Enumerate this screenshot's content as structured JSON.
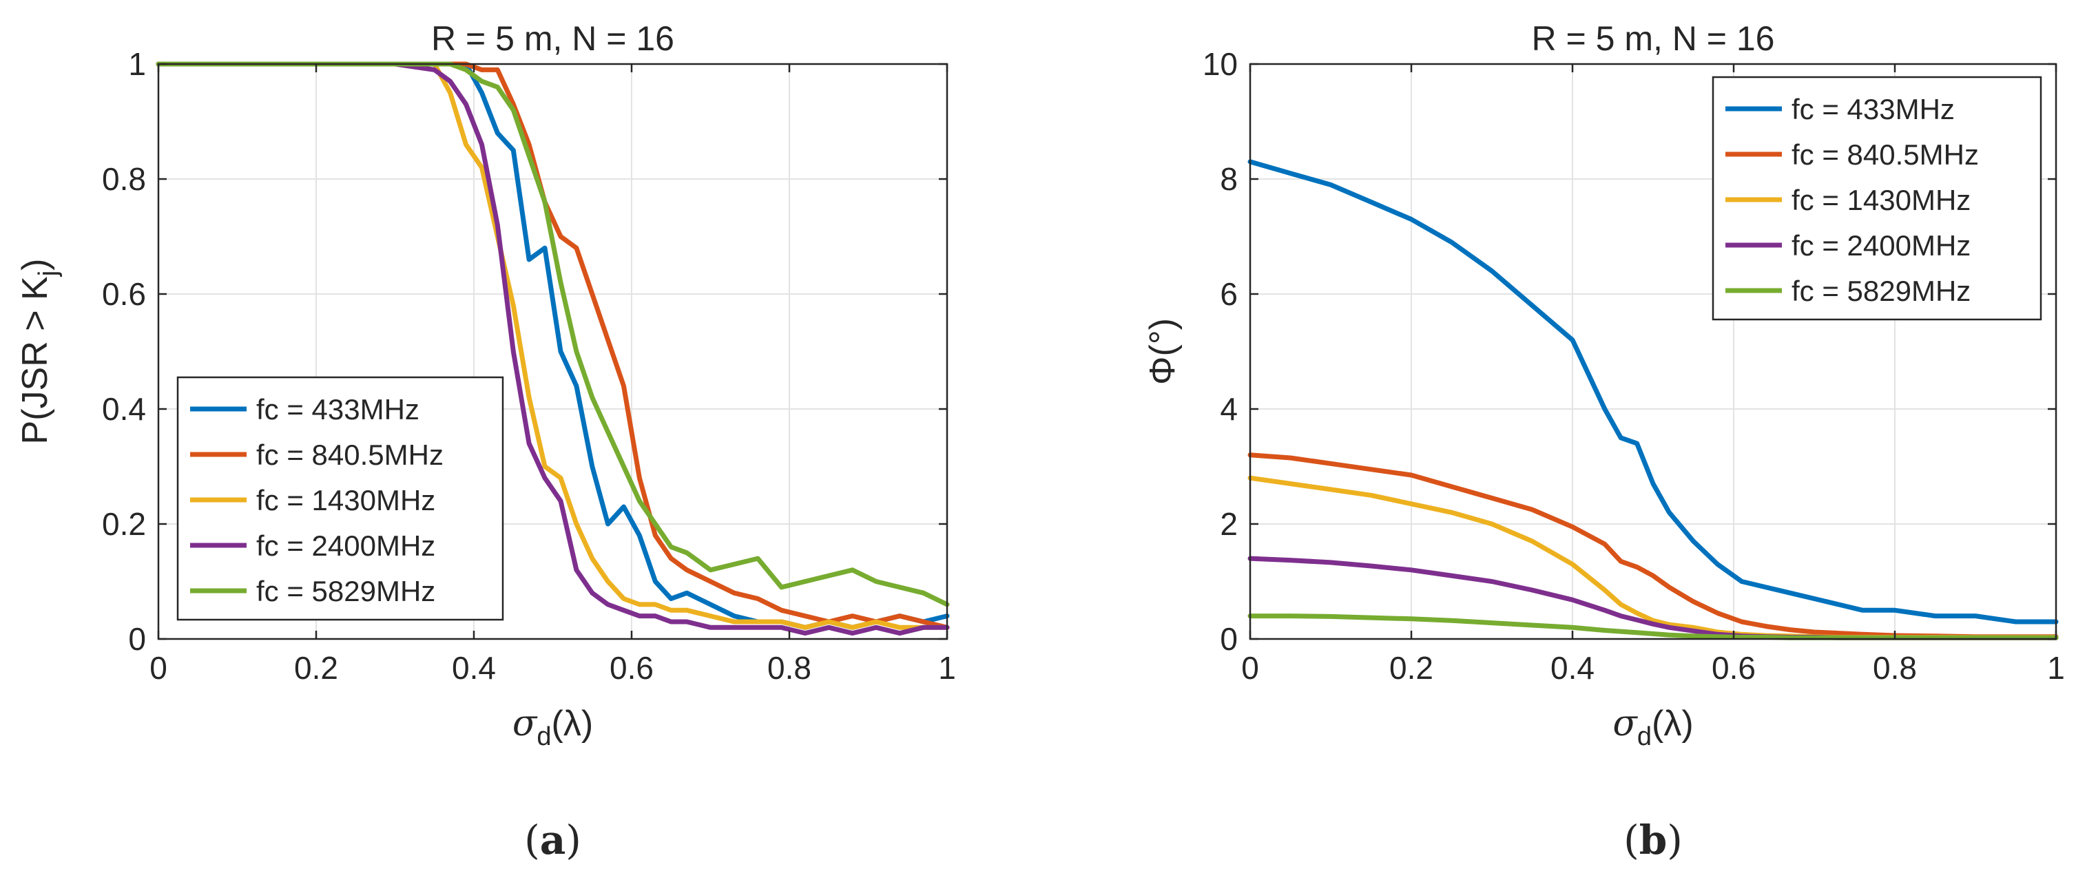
{
  "chart_data": [
    {
      "type": "line",
      "panel_label": {
        "open": "(",
        "letter": "a",
        "close": ")"
      },
      "title": "R = 5 m, N = 16",
      "xlabel": {
        "main": "σ",
        "sub": "d",
        "rest": "(λ)"
      },
      "ylabel": {
        "main": "P(JSR > K",
        "sub": "j",
        "rest": ")"
      },
      "xlim": [
        0,
        1
      ],
      "ylim": [
        0,
        1
      ],
      "xticks": [
        0,
        0.2,
        0.4,
        0.6,
        0.8,
        1
      ],
      "xtick_labels": [
        "0",
        "0.2",
        "0.4",
        "0.6",
        "0.8",
        "1"
      ],
      "yticks": [
        0,
        0.2,
        0.4,
        0.6,
        0.8,
        1
      ],
      "ytick_labels": [
        "0",
        "0.2",
        "0.4",
        "0.6",
        "0.8",
        "1"
      ],
      "grid": true,
      "legend_position": "lower-left",
      "x": [
        0,
        0.05,
        0.1,
        0.15,
        0.2,
        0.25,
        0.3,
        0.35,
        0.37,
        0.39,
        0.41,
        0.43,
        0.45,
        0.47,
        0.49,
        0.51,
        0.53,
        0.55,
        0.57,
        0.59,
        0.61,
        0.63,
        0.65,
        0.67,
        0.7,
        0.73,
        0.76,
        0.79,
        0.82,
        0.85,
        0.88,
        0.91,
        0.94,
        0.97,
        1.0
      ],
      "series": [
        {
          "name": "fc = 433MHz",
          "color": "#0072BD",
          "values": [
            1,
            1,
            1,
            1,
            1,
            1,
            1,
            1,
            1,
            1,
            0.95,
            0.88,
            0.85,
            0.66,
            0.68,
            0.5,
            0.44,
            0.3,
            0.2,
            0.23,
            0.18,
            0.1,
            0.07,
            0.08,
            0.06,
            0.04,
            0.03,
            0.03,
            0.02,
            0.03,
            0.02,
            0.03,
            0.04,
            0.03,
            0.04
          ]
        },
        {
          "name": "fc = 840.5MHz",
          "color": "#D95319",
          "values": [
            1,
            1,
            1,
            1,
            1,
            1,
            1,
            1,
            1,
            1,
            0.99,
            0.99,
            0.93,
            0.86,
            0.76,
            0.7,
            0.68,
            0.6,
            0.52,
            0.44,
            0.28,
            0.18,
            0.14,
            0.12,
            0.1,
            0.08,
            0.07,
            0.05,
            0.04,
            0.03,
            0.04,
            0.03,
            0.04,
            0.03,
            0.02
          ]
        },
        {
          "name": "fc = 1430MHz",
          "color": "#EDB120",
          "values": [
            1,
            1,
            1,
            1,
            1,
            1,
            1,
            1,
            0.95,
            0.86,
            0.82,
            0.7,
            0.58,
            0.42,
            0.3,
            0.28,
            0.2,
            0.14,
            0.1,
            0.07,
            0.06,
            0.06,
            0.05,
            0.05,
            0.04,
            0.03,
            0.03,
            0.03,
            0.02,
            0.03,
            0.02,
            0.03,
            0.02,
            0.02,
            0.02
          ]
        },
        {
          "name": "fc = 2400MHz",
          "color": "#7E2F8E",
          "values": [
            1,
            1,
            1,
            1,
            1,
            1,
            1,
            0.99,
            0.97,
            0.93,
            0.86,
            0.72,
            0.5,
            0.34,
            0.28,
            0.24,
            0.12,
            0.08,
            0.06,
            0.05,
            0.04,
            0.04,
            0.03,
            0.03,
            0.02,
            0.02,
            0.02,
            0.02,
            0.01,
            0.02,
            0.01,
            0.02,
            0.01,
            0.02,
            0.02
          ]
        },
        {
          "name": "fc = 5829MHz",
          "color": "#77AC30",
          "values": [
            1,
            1,
            1,
            1,
            1,
            1,
            1,
            1,
            1,
            0.99,
            0.97,
            0.96,
            0.92,
            0.84,
            0.76,
            0.62,
            0.5,
            0.42,
            0.36,
            0.3,
            0.24,
            0.2,
            0.16,
            0.15,
            0.12,
            0.13,
            0.14,
            0.09,
            0.1,
            0.11,
            0.12,
            0.1,
            0.09,
            0.08,
            0.06
          ]
        }
      ]
    },
    {
      "type": "line",
      "panel_label": {
        "open": "(",
        "letter": "b",
        "close": ")"
      },
      "title": "R = 5 m, N = 16",
      "xlabel": {
        "main": "σ",
        "sub": "d",
        "rest": "(λ)"
      },
      "ylabel": {
        "main": "Φ(°)",
        "sub": "",
        "rest": ""
      },
      "xlim": [
        0,
        1
      ],
      "ylim": [
        0,
        10
      ],
      "xticks": [
        0,
        0.2,
        0.4,
        0.6,
        0.8,
        1
      ],
      "xtick_labels": [
        "0",
        "0.2",
        "0.4",
        "0.6",
        "0.8",
        "1"
      ],
      "yticks": [
        0,
        2,
        4,
        6,
        8,
        10
      ],
      "ytick_labels": [
        "0",
        "2",
        "4",
        "6",
        "8",
        "10"
      ],
      "grid": true,
      "legend_position": "top-right",
      "x": [
        0,
        0.05,
        0.1,
        0.15,
        0.2,
        0.25,
        0.3,
        0.35,
        0.4,
        0.44,
        0.46,
        0.48,
        0.5,
        0.52,
        0.55,
        0.58,
        0.61,
        0.64,
        0.67,
        0.7,
        0.73,
        0.76,
        0.8,
        0.85,
        0.9,
        0.95,
        1.0
      ],
      "series": [
        {
          "name": "fc = 433MHz",
          "color": "#0072BD",
          "values": [
            8.3,
            8.1,
            7.9,
            7.6,
            7.3,
            6.9,
            6.4,
            5.8,
            5.2,
            4.0,
            3.5,
            3.4,
            2.7,
            2.2,
            1.7,
            1.3,
            1.0,
            0.9,
            0.8,
            0.7,
            0.6,
            0.5,
            0.5,
            0.4,
            0.4,
            0.3,
            0.3
          ]
        },
        {
          "name": "fc = 840.5MHz",
          "color": "#D95319",
          "values": [
            3.2,
            3.15,
            3.05,
            2.95,
            2.85,
            2.65,
            2.45,
            2.25,
            1.95,
            1.65,
            1.35,
            1.25,
            1.1,
            0.9,
            0.65,
            0.45,
            0.3,
            0.22,
            0.16,
            0.12,
            0.1,
            0.08,
            0.06,
            0.05,
            0.04,
            0.04,
            0.04
          ]
        },
        {
          "name": "fc = 1430MHz",
          "color": "#EDB120",
          "values": [
            2.8,
            2.7,
            2.6,
            2.5,
            2.35,
            2.2,
            2.0,
            1.7,
            1.3,
            0.85,
            0.6,
            0.45,
            0.32,
            0.25,
            0.2,
            0.12,
            0.08,
            0.06,
            0.05,
            0.04,
            0.03,
            0.03,
            0.03,
            0.03,
            0.03,
            0.03,
            0.03
          ]
        },
        {
          "name": "fc = 2400MHz",
          "color": "#7E2F8E",
          "values": [
            1.4,
            1.37,
            1.33,
            1.27,
            1.2,
            1.1,
            1.0,
            0.85,
            0.68,
            0.5,
            0.4,
            0.33,
            0.26,
            0.2,
            0.14,
            0.08,
            0.05,
            0.04,
            0.03,
            0.03,
            0.02,
            0.02,
            0.02,
            0.02,
            0.02,
            0.02,
            0.02
          ]
        },
        {
          "name": "fc = 5829MHz",
          "color": "#77AC30",
          "values": [
            0.4,
            0.4,
            0.39,
            0.37,
            0.35,
            0.32,
            0.28,
            0.24,
            0.2,
            0.15,
            0.13,
            0.11,
            0.09,
            0.07,
            0.05,
            0.04,
            0.03,
            0.03,
            0.02,
            0.02,
            0.02,
            0.02,
            0.02,
            0.02,
            0.02,
            0.02,
            0.02
          ]
        }
      ]
    }
  ]
}
